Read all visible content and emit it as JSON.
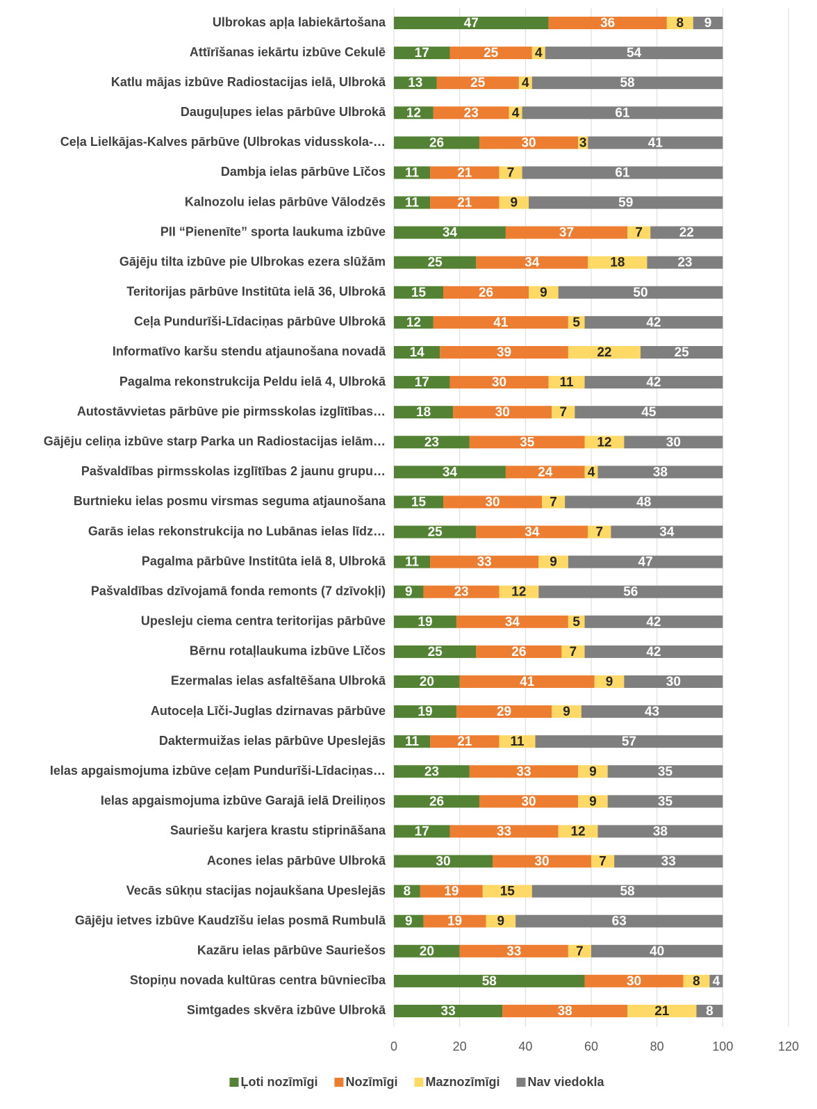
{
  "chart_data": {
    "type": "stacked_barh",
    "categories": [
      "Ulbrokas apļa labiekārtošana",
      "Attīrīšanas iekārtu izbūve Cekulē",
      "Katlu mājas izbūve Radiostacijas ielā, Ulbrokā",
      "Dauguļupes ielas pārbūve Ulbrokā",
      "Ceļa Lielkājas-Kalves pārbūve (Ulbrokas vidusskola-…",
      "Dambja ielas pārbūve Līčos",
      "Kalnozolu ielas pārbūve Vālodzēs",
      "PII “Pienenīte” sporta laukuma izbūve",
      "Gājēju tilta izbūve pie Ulbrokas ezera slūžām",
      "Teritorijas pārbūve Institūta ielā 36, Ulbrokā",
      "Ceļa Pundurīši-Līdaciņas pārbūve Ulbrokā",
      "Informatīvo karšu stendu atjaunošana novadā",
      "Pagalma rekonstrukcija Peldu ielā 4, Ulbrokā",
      "Autostāvvietas pārbūve pie pirmsskolas izglītības…",
      "Gājēju celiņa izbūve starp Parka un Radiostacijas ielām…",
      "Pašvaldības pirmsskolas izglītības 2 jaunu grupu…",
      "Burtnieku ielas posmu virsmas seguma atjaunošana",
      "Garās ielas rekonstrukcija no Lubānas ielas līdz…",
      "Pagalma pārbūve Institūta ielā 8, Ulbrokā",
      "Pašvaldības dzīvojamā fonda remonts (7 dzīvokļi)",
      "Upesleju ciema centra teritorijas pārbūve",
      "Bērnu rotaļlaukuma izbūve Līčos",
      "Ezermalas ielas asfaltēšana Ulbrokā",
      "Autoceļa Līči-Juglas dzirnavas pārbūve",
      "Daktermuižas ielas pārbūve Upeslejās",
      "Ielas apgaismojuma izbūve ceļam Pundurīši-Līdaciņas…",
      "Ielas apgaismojuma izbūve Garajā ielā Dreiliņos",
      "Sauriešu karjera krastu stiprināšana",
      "Acones ielas pārbūve Ulbrokā",
      "Vecās sūkņu stacijas nojaukšana Upeslejās",
      "Gājēju ietves izbūve Kaudzīšu ielas posmā Rumbulā",
      "Kazāru ielas pārbūve Sauriešos",
      "Stopiņu novada kultūras centra būvniecība",
      "Simtgades skvēra izbūve Ulbrokā"
    ],
    "series": [
      {
        "name": "Ļoti nozīmīgi",
        "color": "#548235",
        "values": [
          47,
          17,
          13,
          12,
          26,
          11,
          11,
          34,
          25,
          15,
          12,
          14,
          17,
          18,
          23,
          34,
          15,
          25,
          11,
          9,
          19,
          25,
          20,
          19,
          11,
          23,
          26,
          17,
          30,
          8,
          9,
          20,
          58,
          33
        ]
      },
      {
        "name": "Nozīmīgi",
        "color": "#ed7d31",
        "values": [
          36,
          25,
          25,
          23,
          30,
          21,
          21,
          37,
          34,
          26,
          41,
          39,
          30,
          30,
          35,
          24,
          30,
          34,
          33,
          23,
          34,
          26,
          41,
          29,
          21,
          33,
          30,
          33,
          30,
          19,
          19,
          33,
          30,
          38
        ]
      },
      {
        "name": "Maznozīmīgi",
        "color": "#ffd966",
        "values": [
          8,
          4,
          4,
          4,
          3,
          7,
          9,
          7,
          18,
          9,
          5,
          22,
          11,
          7,
          12,
          4,
          7,
          7,
          9,
          12,
          5,
          7,
          9,
          9,
          11,
          9,
          9,
          12,
          7,
          15,
          9,
          7,
          8,
          21
        ]
      },
      {
        "name": "Nav viedokla",
        "color": "#7f7f7f",
        "values": [
          9,
          54,
          58,
          61,
          41,
          61,
          59,
          22,
          23,
          50,
          42,
          25,
          42,
          45,
          30,
          38,
          48,
          34,
          47,
          56,
          42,
          42,
          30,
          43,
          57,
          35,
          35,
          38,
          33,
          58,
          63,
          40,
          4,
          8
        ]
      }
    ],
    "xlim": [
      0,
      120
    ],
    "xticks": [
      0,
      20,
      40,
      60,
      80,
      100,
      120
    ],
    "grid": true,
    "legend": "bottom"
  }
}
